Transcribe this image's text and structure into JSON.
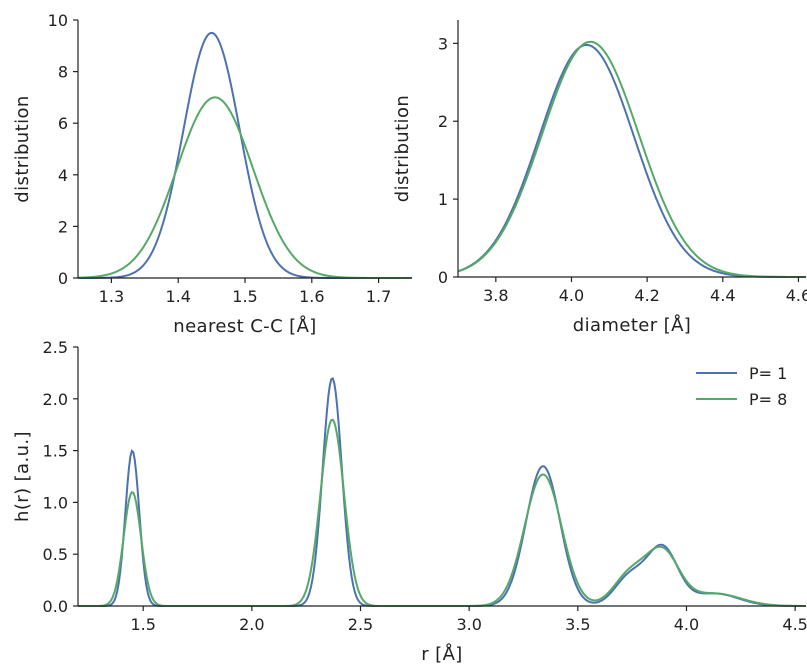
{
  "chart_data": [
    {
      "type": "line",
      "xlabel": "nearest C-C [Å]",
      "ylabel": "distribution",
      "xlim": [
        1.25,
        1.75
      ],
      "ylim": [
        0,
        10
      ],
      "xticks": [
        "1.3",
        "1.4",
        "1.5",
        "1.6",
        "1.7"
      ],
      "yticks": [
        "0",
        "2",
        "4",
        "6",
        "8",
        "10"
      ],
      "series": [
        {
          "name": "P= 1",
          "color": "#4c72b0",
          "components": [
            {
              "mu": 1.45,
              "sigma": 0.042,
              "amp": 9.5
            }
          ]
        },
        {
          "name": "P= 8",
          "color": "#55a868",
          "components": [
            {
              "mu": 1.455,
              "sigma": 0.057,
              "amp": 7.0
            }
          ]
        }
      ]
    },
    {
      "type": "line",
      "xlabel": "diameter [Å]",
      "ylabel": "distribution",
      "xlim": [
        3.7,
        4.62
      ],
      "ylim": [
        0,
        3.3
      ],
      "xticks": [
        "3.8",
        "4.0",
        "4.2",
        "4.4",
        "4.6"
      ],
      "yticks": [
        "0",
        "1",
        "2",
        "3"
      ],
      "series": [
        {
          "name": "P= 1",
          "color": "#4c72b0",
          "components": [
            {
              "mu": 4.04,
              "sigma": 0.125,
              "amp": 2.98
            }
          ]
        },
        {
          "name": "P= 8",
          "color": "#55a868",
          "components": [
            {
              "mu": 4.05,
              "sigma": 0.128,
              "amp": 3.02
            }
          ]
        }
      ]
    },
    {
      "type": "line",
      "xlabel": "r [Å]",
      "ylabel": "h(r) [a.u.]",
      "xlim": [
        1.2,
        4.55
      ],
      "ylim": [
        0,
        2.5
      ],
      "xticks": [
        "1.5",
        "2.0",
        "2.5",
        "3.0",
        "3.5",
        "4.0",
        "4.5"
      ],
      "yticks": [
        "0.0",
        "0.5",
        "1.0",
        "1.5",
        "2.0",
        "2.5"
      ],
      "legend": "top-right",
      "series": [
        {
          "name": "P= 1",
          "color": "#4c72b0",
          "components": [
            {
              "mu": 1.45,
              "sigma": 0.032,
              "amp": 1.5
            },
            {
              "mu": 2.37,
              "sigma": 0.044,
              "amp": 2.2
            },
            {
              "mu": 3.34,
              "sigma": 0.078,
              "amp": 1.35
            },
            {
              "mu": 3.74,
              "sigma": 0.07,
              "amp": 0.28
            },
            {
              "mu": 3.89,
              "sigma": 0.07,
              "amp": 0.55
            },
            {
              "mu": 4.13,
              "sigma": 0.11,
              "amp": 0.12
            }
          ]
        },
        {
          "name": "P= 8",
          "color": "#55a868",
          "components": [
            {
              "mu": 1.45,
              "sigma": 0.04,
              "amp": 1.1
            },
            {
              "mu": 2.37,
              "sigma": 0.054,
              "amp": 1.8
            },
            {
              "mu": 3.34,
              "sigma": 0.085,
              "amp": 1.27
            },
            {
              "mu": 3.74,
              "sigma": 0.075,
              "amp": 0.3
            },
            {
              "mu": 3.89,
              "sigma": 0.075,
              "amp": 0.51
            },
            {
              "mu": 4.13,
              "sigma": 0.12,
              "amp": 0.12
            }
          ]
        }
      ]
    }
  ]
}
